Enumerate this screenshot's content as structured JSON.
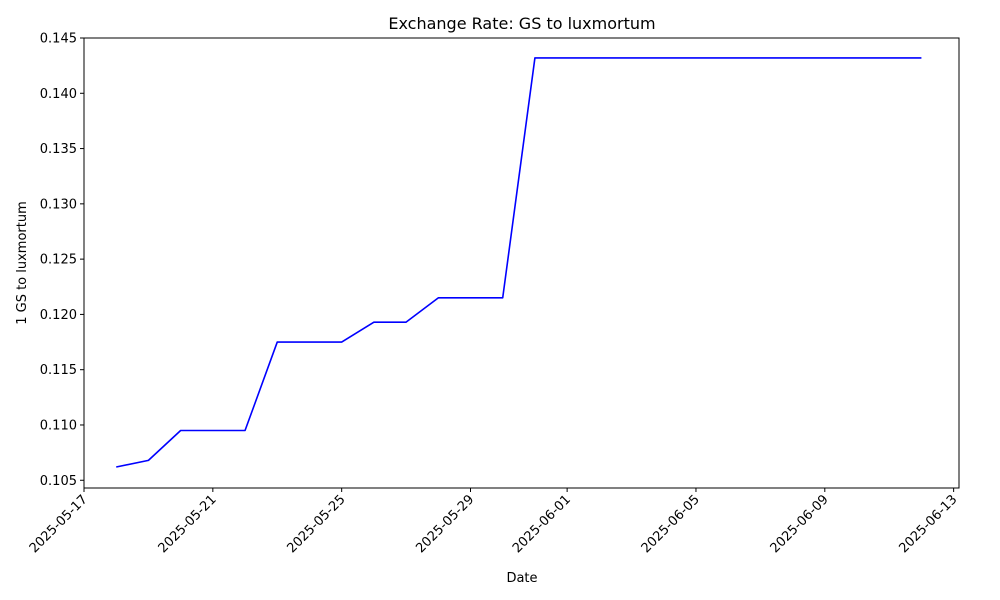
{
  "chart_data": {
    "type": "line",
    "title": "Exchange Rate: GS to luxmortum",
    "xlabel": "Date",
    "ylabel": "1 GS to luxmortum",
    "xlim": [
      "2025-05-17T00:00",
      "2025-06-13T04:00"
    ],
    "ylim": [
      0.1043,
      0.145
    ],
    "grid": false,
    "legend": "none",
    "x_ticks": [
      "2025-05-17",
      "2025-05-21",
      "2025-05-25",
      "2025-05-29",
      "2025-06-01",
      "2025-06-05",
      "2025-06-09",
      "2025-06-13"
    ],
    "y_ticks": [
      "0.105",
      "0.110",
      "0.115",
      "0.120",
      "0.125",
      "0.130",
      "0.135",
      "0.140",
      "0.145"
    ],
    "color": "#0000ff",
    "series": [
      {
        "x": [
          "2025-05-18",
          "2025-05-19",
          "2025-05-20",
          "2025-05-21",
          "2025-05-22",
          "2025-05-23",
          "2025-05-24",
          "2025-05-25",
          "2025-05-26",
          "2025-05-27",
          "2025-05-28",
          "2025-05-29",
          "2025-05-30",
          "2025-05-31",
          "2025-06-01",
          "2025-06-02",
          "2025-06-03",
          "2025-06-04",
          "2025-06-05",
          "2025-06-06",
          "2025-06-07",
          "2025-06-08",
          "2025-06-09",
          "2025-06-10",
          "2025-06-11",
          "2025-06-12"
        ],
        "values": [
          0.1062,
          0.1068,
          0.1095,
          0.1095,
          0.1095,
          0.1175,
          0.1175,
          0.1175,
          0.1193,
          0.1193,
          0.1215,
          0.1215,
          0.1215,
          0.1432,
          0.1432,
          0.1432,
          0.1432,
          0.1432,
          0.1432,
          0.1432,
          0.1432,
          0.1432,
          0.1432,
          0.1432,
          0.1432,
          0.1432
        ]
      }
    ]
  }
}
